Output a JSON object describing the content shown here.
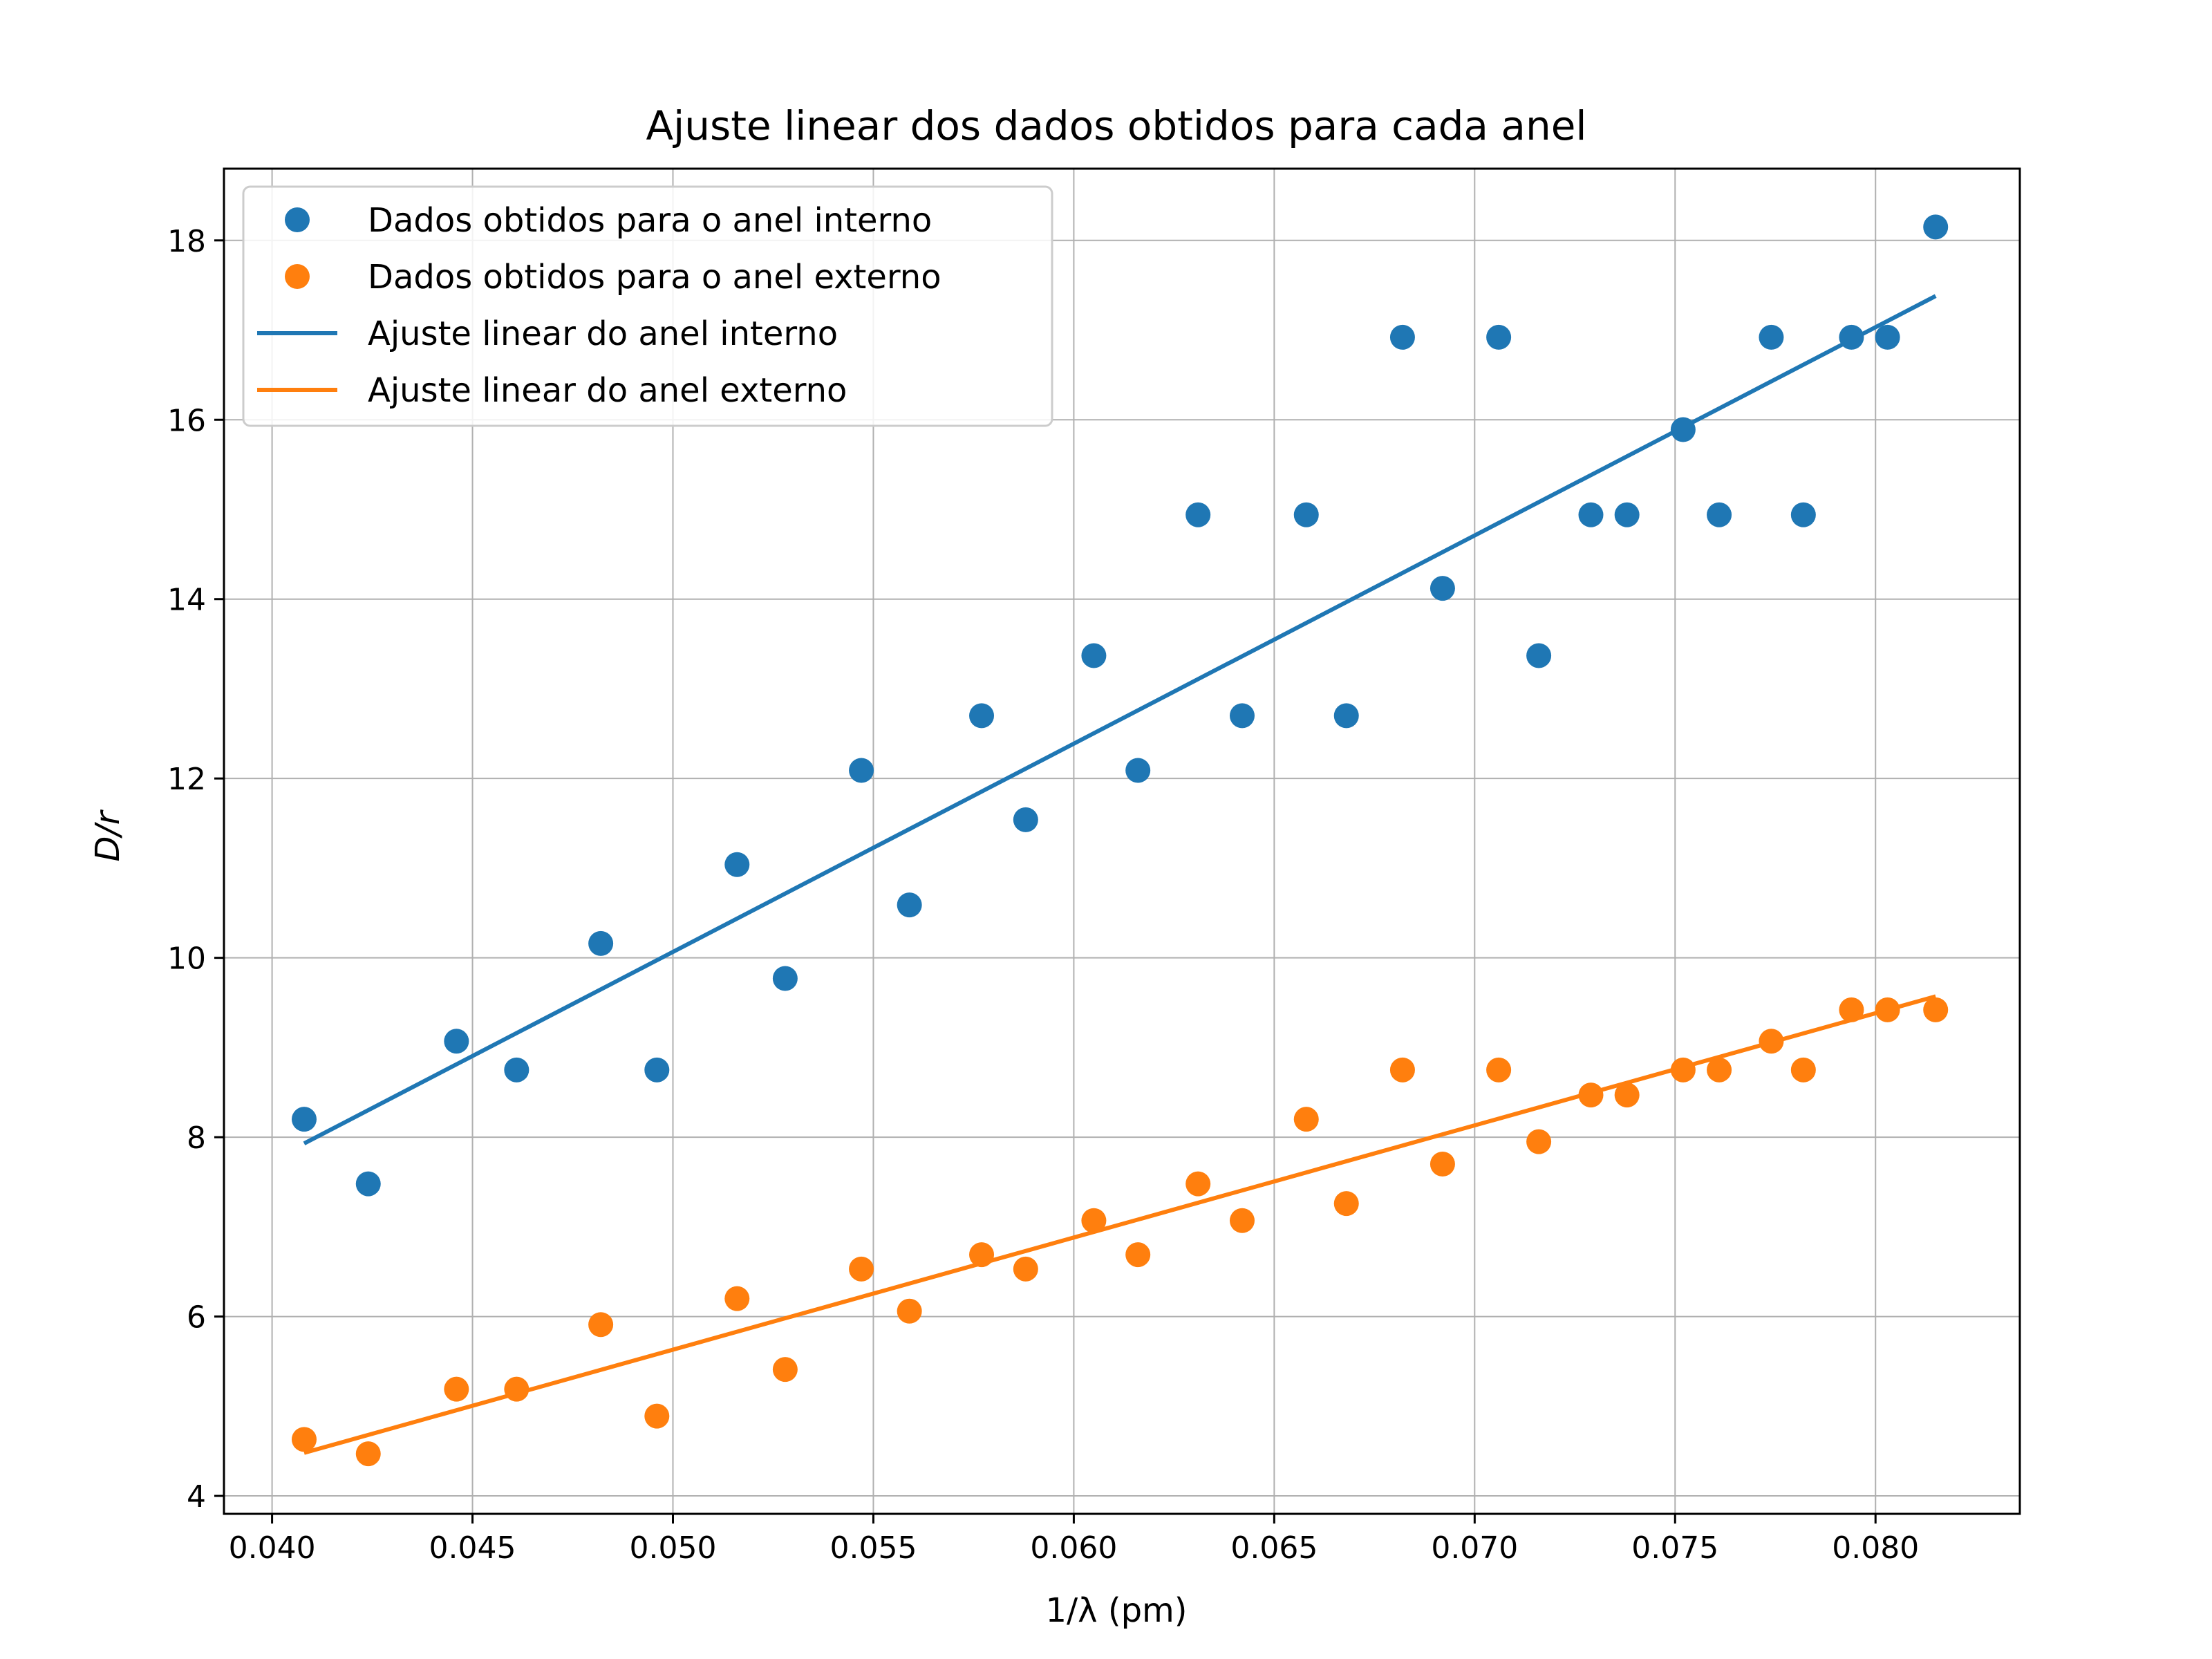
{
  "chart_data": {
    "type": "scatter",
    "title": "Ajuste linear dos dados obtidos para cada anel",
    "xlabel": "1/λ (pm)",
    "ylabel": "D/r",
    "xlim": [
      0.0388,
      0.0836
    ],
    "ylim": [
      3.8,
      18.8
    ],
    "xticks": [
      0.04,
      0.045,
      0.05,
      0.055,
      0.06,
      0.065,
      0.07,
      0.075,
      0.08
    ],
    "xtick_labels": [
      "0.040",
      "0.045",
      "0.050",
      "0.055",
      "0.060",
      "0.065",
      "0.070",
      "0.075",
      "0.080"
    ],
    "yticks": [
      4,
      6,
      8,
      10,
      12,
      14,
      16,
      18
    ],
    "ytick_labels": [
      "4",
      "6",
      "8",
      "10",
      "12",
      "14",
      "16",
      "18"
    ],
    "grid": true,
    "legend_position": "top-left",
    "x": [
      0.0408,
      0.0424,
      0.0446,
      0.0461,
      0.0482,
      0.0496,
      0.0516,
      0.0528,
      0.0547,
      0.0559,
      0.0577,
      0.0588,
      0.0605,
      0.0616,
      0.0631,
      0.0642,
      0.0658,
      0.0668,
      0.0682,
      0.0692,
      0.0706,
      0.0716,
      0.0729,
      0.0738,
      0.0752,
      0.0761,
      0.0774,
      0.0782,
      0.0794,
      0.0803,
      0.0815
    ],
    "series": [
      {
        "name": "Dados obtidos para o anel interno",
        "kind": "scatter",
        "color": "#1f77b4",
        "values": [
          8.2,
          7.48,
          9.07,
          8.75,
          10.16,
          8.75,
          11.04,
          9.77,
          12.09,
          10.59,
          12.7,
          11.54,
          13.37,
          12.09,
          14.94,
          12.7,
          14.94,
          12.7,
          16.92,
          14.12,
          16.92,
          13.37,
          14.94,
          14.94,
          15.89,
          14.94,
          16.92,
          14.94,
          16.92,
          16.92,
          18.15
        ]
      },
      {
        "name": "Dados obtidos para o anel externo",
        "kind": "scatter",
        "color": "#ff7f0e",
        "values": [
          4.63,
          4.47,
          5.19,
          5.19,
          5.91,
          4.89,
          6.2,
          5.41,
          6.53,
          6.06,
          6.69,
          6.53,
          7.07,
          6.69,
          7.48,
          7.07,
          8.2,
          7.26,
          8.75,
          7.7,
          8.75,
          7.95,
          8.47,
          8.47,
          8.75,
          8.75,
          9.07,
          8.75,
          9.42,
          9.42,
          9.42
        ]
      },
      {
        "name": "Ajuste linear do anel interno",
        "kind": "line",
        "color": "#1f77b4",
        "x": [
          0.0408,
          0.0815
        ],
        "values": [
          7.93,
          17.38
        ]
      },
      {
        "name": "Ajuste linear do anel externo",
        "kind": "line",
        "color": "#ff7f0e",
        "x": [
          0.0408,
          0.0815
        ],
        "values": [
          4.48,
          9.57
        ]
      }
    ]
  }
}
